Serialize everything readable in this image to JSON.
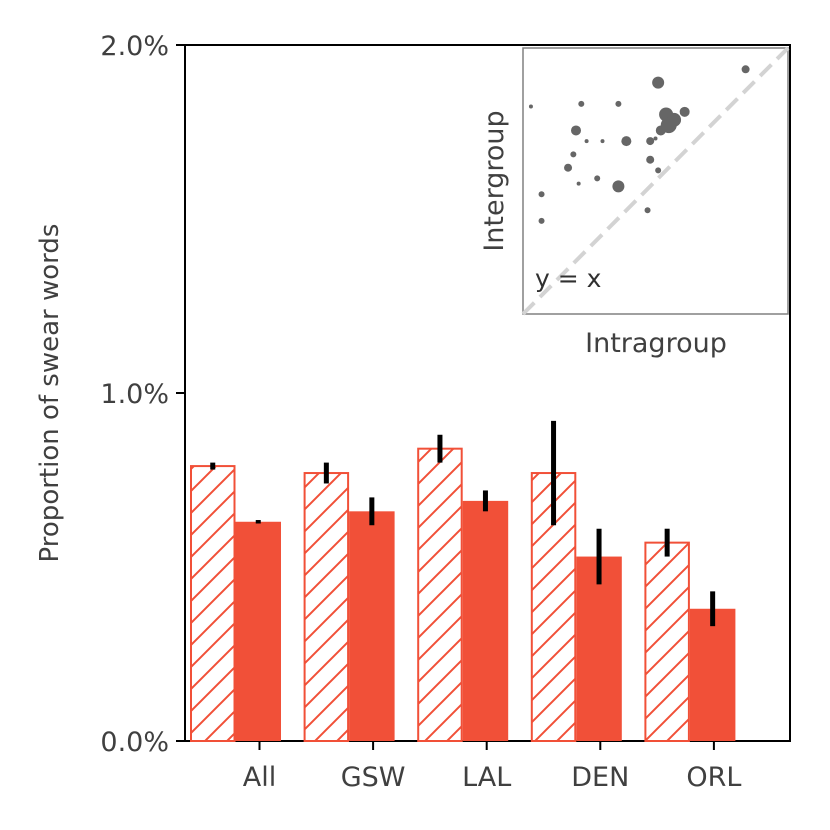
{
  "chart_data": {
    "type": "bar",
    "ylabel": "Proportion of swear words",
    "ylim": [
      0,
      2.0
    ],
    "yticks": [
      {
        "value": 0.0,
        "label": "0.0%"
      },
      {
        "value": 1.0,
        "label": "1.0%"
      },
      {
        "value": 2.0,
        "label": "2.0%"
      }
    ],
    "categories": [
      "All",
      "GSW",
      "LAL",
      "DEN",
      "ORL"
    ],
    "series": [
      {
        "name": "Intragroup",
        "style": "hatched",
        "color": "#f15038",
        "values": [
          0.79,
          0.77,
          0.84,
          0.77,
          0.57
        ],
        "errors": [
          0.01,
          0.03,
          0.04,
          0.15,
          0.04
        ]
      },
      {
        "name": "Intergroup",
        "style": "solid",
        "color": "#f15038",
        "values": [
          0.63,
          0.66,
          0.69,
          0.53,
          0.38
        ],
        "errors": [
          0.005,
          0.04,
          0.03,
          0.08,
          0.05
        ]
      }
    ],
    "inset": {
      "type": "scatter",
      "xlabel": "Intragroup",
      "ylabel": "Intergroup",
      "annotation": "y = x",
      "reference_line": "y = x",
      "point_color": "#666666",
      "points": [
        {
          "x": 0.03,
          "y": 0.78,
          "size": 2
        },
        {
          "x": 0.07,
          "y": 0.45,
          "size": 3
        },
        {
          "x": 0.07,
          "y": 0.35,
          "size": 3
        },
        {
          "x": 0.22,
          "y": 0.79,
          "size": 3
        },
        {
          "x": 0.2,
          "y": 0.69,
          "size": 5
        },
        {
          "x": 0.19,
          "y": 0.6,
          "size": 3
        },
        {
          "x": 0.24,
          "y": 0.65,
          "size": 2
        },
        {
          "x": 0.17,
          "y": 0.55,
          "size": 4
        },
        {
          "x": 0.21,
          "y": 0.49,
          "size": 2
        },
        {
          "x": 0.3,
          "y": 0.65,
          "size": 2
        },
        {
          "x": 0.28,
          "y": 0.51,
          "size": 3
        },
        {
          "x": 0.36,
          "y": 0.48,
          "size": 6
        },
        {
          "x": 0.36,
          "y": 0.79,
          "size": 3
        },
        {
          "x": 0.39,
          "y": 0.65,
          "size": 5
        },
        {
          "x": 0.48,
          "y": 0.58,
          "size": 4
        },
        {
          "x": 0.51,
          "y": 0.54,
          "size": 3
        },
        {
          "x": 0.48,
          "y": 0.65,
          "size": 4
        },
        {
          "x": 0.5,
          "y": 0.66,
          "size": 2
        },
        {
          "x": 0.52,
          "y": 0.69,
          "size": 5
        },
        {
          "x": 0.54,
          "y": 0.75,
          "size": 7
        },
        {
          "x": 0.55,
          "y": 0.71,
          "size": 8
        },
        {
          "x": 0.57,
          "y": 0.73,
          "size": 7
        },
        {
          "x": 0.61,
          "y": 0.76,
          "size": 5
        },
        {
          "x": 0.51,
          "y": 0.87,
          "size": 6
        },
        {
          "x": 0.47,
          "y": 0.39,
          "size": 3
        },
        {
          "x": 0.84,
          "y": 0.92,
          "size": 4
        }
      ]
    }
  }
}
